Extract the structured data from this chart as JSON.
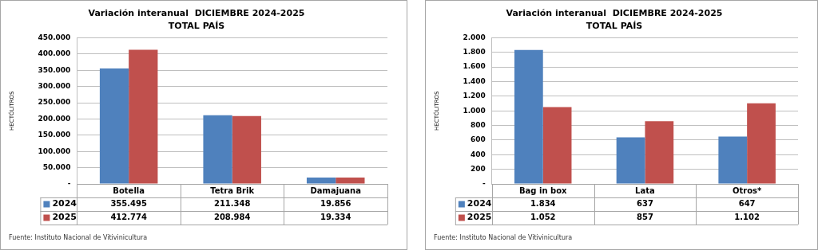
{
  "chart_data": [
    {
      "type": "bar",
      "title": "Variación interanual  DICIEMBRE 2024-2025",
      "subtitle": "TOTAL PAÍS",
      "ylabel": "HECTÓLITROS",
      "categories": [
        "Botella",
        "Tetra Brik",
        "Damajuana"
      ],
      "series": [
        {
          "name": "2024",
          "color": "#4f81bd",
          "values": [
            355495,
            211348,
            19856
          ],
          "value_labels": [
            "355.495",
            "211.348",
            "19.856"
          ]
        },
        {
          "name": "2025",
          "color": "#c0504d",
          "values": [
            412774,
            208984,
            19334
          ],
          "value_labels": [
            "412.774",
            "208.984",
            "19.334"
          ]
        }
      ],
      "ylim": [
        0,
        450000
      ],
      "yticks": [
        {
          "value": 0,
          "label": "-"
        },
        {
          "value": 50000,
          "label": "50.000"
        },
        {
          "value": 100000,
          "label": "100.000"
        },
        {
          "value": 150000,
          "label": "150.000"
        },
        {
          "value": 200000,
          "label": "200.000"
        },
        {
          "value": 250000,
          "label": "250.000"
        },
        {
          "value": 300000,
          "label": "300.000"
        },
        {
          "value": 350000,
          "label": "350.000"
        },
        {
          "value": 400000,
          "label": "400.000"
        },
        {
          "value": 450000,
          "label": "450.000"
        }
      ],
      "grid": "y",
      "legend": "bottom",
      "annotations": [
        "Fuente: Instituto Nacional de Vitivinicultura"
      ]
    },
    {
      "type": "bar",
      "title": "Variación interanual  DICIEMBRE 2024-2025",
      "subtitle": "TOTAL PAÍS",
      "ylabel": "HECTÓLITROS",
      "categories": [
        "Bag in box",
        "Lata",
        "Otros*"
      ],
      "series": [
        {
          "name": "2024",
          "color": "#4f81bd",
          "values": [
            1834,
            637,
            647
          ],
          "value_labels": [
            "1.834",
            "637",
            "647"
          ]
        },
        {
          "name": "2025",
          "color": "#c0504d",
          "values": [
            1052,
            857,
            1102
          ],
          "value_labels": [
            "1.052",
            "857",
            "1.102"
          ]
        }
      ],
      "ylim": [
        0,
        2000
      ],
      "yticks": [
        {
          "value": 0,
          "label": "-"
        },
        {
          "value": 200,
          "label": "200"
        },
        {
          "value": 400,
          "label": "400"
        },
        {
          "value": 600,
          "label": "600"
        },
        {
          "value": 800,
          "label": "800"
        },
        {
          "value": 1000,
          "label": "1.000"
        },
        {
          "value": 1200,
          "label": "1.200"
        },
        {
          "value": 1400,
          "label": "1.400"
        },
        {
          "value": 1600,
          "label": "1.600"
        },
        {
          "value": 1800,
          "label": "1.800"
        },
        {
          "value": 2000,
          "label": "2.000"
        }
      ],
      "grid": "y",
      "legend": "bottom",
      "annotations": [
        "Fuente: Instituto Nacional de Vitivinicultura"
      ]
    }
  ]
}
